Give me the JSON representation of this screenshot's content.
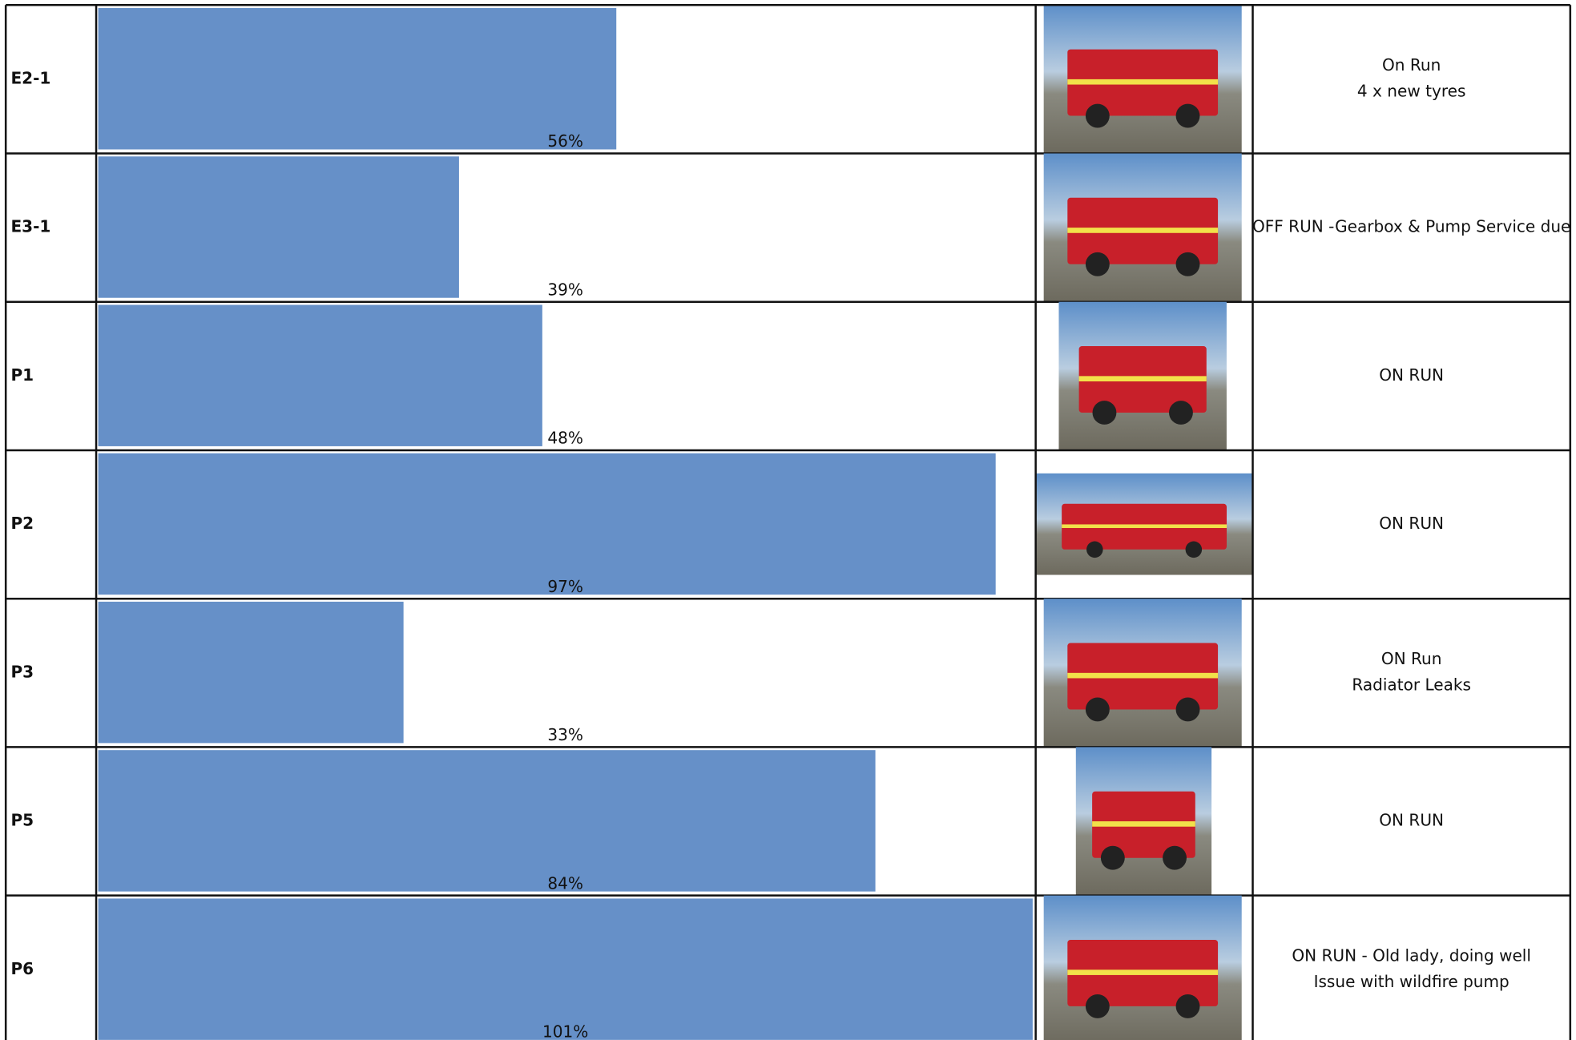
{
  "table": {
    "rows": [
      {
        "unit": "E2-1",
        "value": 56,
        "value_label": "56%",
        "status": [
          "On Run",
          "4 x new tyres"
        ]
      },
      {
        "unit": "E3-1",
        "value": 39,
        "value_label": "39%",
        "status": [
          "OFF RUN -Gearbox & Pump Service due"
        ]
      },
      {
        "unit": "P1",
        "value": 48,
        "value_label": "48%",
        "status": [
          "ON RUN"
        ]
      },
      {
        "unit": "P2",
        "value": 97,
        "value_label": "97%",
        "status": [
          "ON RUN"
        ]
      },
      {
        "unit": "P3",
        "value": 33,
        "value_label": "33%",
        "status": [
          "ON Run",
          "Radiator Leaks"
        ]
      },
      {
        "unit": "P5",
        "value": 84,
        "value_label": "84%",
        "status": [
          "ON RUN"
        ]
      },
      {
        "unit": "P6",
        "value": 101,
        "value_label": "101%",
        "status": [
          "ON RUN - Old lady, doing well",
          "Issue with wildfire pump"
        ]
      }
    ]
  }
}
